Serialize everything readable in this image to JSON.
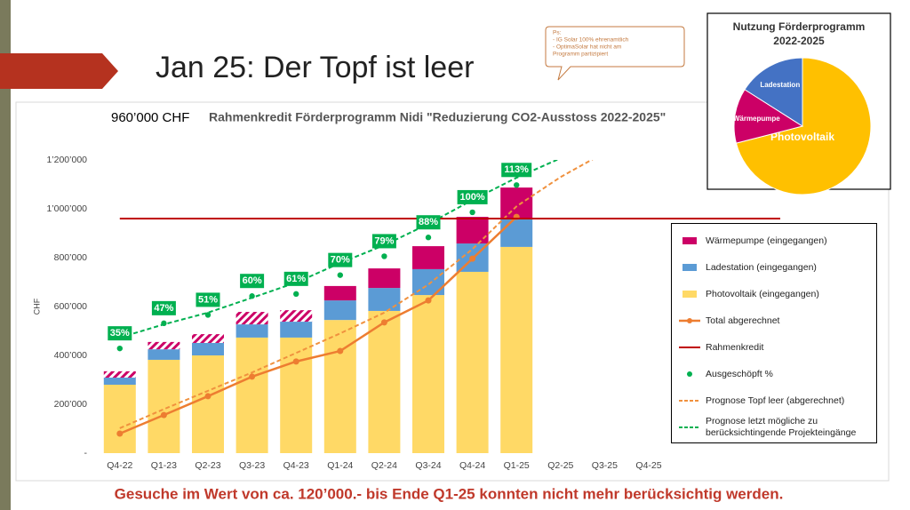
{
  "slide_title": "Jan 25: Der Topf ist leer",
  "note": [
    "Ps:",
    "- IG Solar 100% ehrenamtlich",
    "- OptimaSolar hat nicht am",
    "  Programm partizipiert"
  ],
  "footer": "Gesuche im Wert von ca. 120’000.- bis Ende Q1-25 konnten nicht mehr berücksichtig werden.",
  "chart_data": [
    {
      "type": "bar",
      "stacked": true,
      "grid": false,
      "title": "Rahmenkredit Förderprogramm Nidi \"Reduzierung CO2-Ausstoss 2022-2025\"",
      "subtitle": "960’000 CHF",
      "y_label": "CHF",
      "categories": [
        "Q4-22",
        "Q1-23",
        "Q2-23",
        "Q3-23",
        "Q4-23",
        "Q1-24",
        "Q2-24",
        "Q3-24",
        "Q4-24",
        "Q1-25",
        "Q2-25",
        "Q3-25",
        "Q4-25"
      ],
      "ylim": [
        0,
        1200000
      ],
      "yticks": [
        {
          "value": 0,
          "label": "-"
        },
        {
          "value": 200000,
          "label": "200’000"
        },
        {
          "value": 400000,
          "label": "400’000"
        },
        {
          "value": 600000,
          "label": "600’000"
        },
        {
          "value": 800000,
          "label": "800’000"
        },
        {
          "value": 1000000,
          "label": "1’000’000"
        },
        {
          "value": 1200000,
          "label": "1’200’000"
        }
      ],
      "y2lim": [
        -15,
        125
      ],
      "series": [
        {
          "name": "Wärmepumpe (eingegangen)",
          "kind": "bar",
          "color": "#cc0066",
          "values": [
            26000,
            30000,
            36000,
            51000,
            47000,
            59000,
            80000,
            94000,
            109000,
            127000,
            null,
            null,
            null
          ],
          "hatched": [
            true,
            true,
            true,
            true,
            true,
            false,
            false,
            false,
            false,
            false,
            false,
            false,
            false
          ]
        },
        {
          "name": "Ladestation (eingegangen)",
          "kind": "bar",
          "color": "#5b9bd5",
          "values": [
            29000,
            43000,
            51000,
            54000,
            65000,
            80000,
            94000,
            106000,
            116000,
            116000,
            null,
            null,
            null
          ]
        },
        {
          "name": "Photovoltaik (eingegangen)",
          "kind": "bar",
          "color": "#ffd966",
          "values": [
            280000,
            382000,
            400000,
            473000,
            473000,
            545000,
            582000,
            647000,
            742000,
            844000,
            null,
            null,
            null
          ]
        },
        {
          "name": "Total abgerechnet",
          "kind": "line",
          "color": "#ed7d31",
          "values": [
            80000,
            156000,
            233000,
            313000,
            375000,
            418000,
            535000,
            625000,
            796000,
            967000,
            null,
            null,
            null
          ]
        },
        {
          "name": "Rahmenkredit",
          "kind": "hline",
          "color": "#c00000",
          "value": 960000
        },
        {
          "name": "Ausgeschöpft %",
          "kind": "dots",
          "axis": "y2",
          "color": "#00b050",
          "values": [
            35,
            47,
            51,
            60,
            61,
            70,
            79,
            88,
            100,
            113,
            null,
            null,
            null
          ],
          "value_labels": [
            "35%",
            "47%",
            "51%",
            "60%",
            "61%",
            "70%",
            "79%",
            "88%",
            "100%",
            "113%",
            null,
            null,
            null
          ]
        },
        {
          "name": "Prognose Topf leer (abgerechnet)",
          "kind": "dashed",
          "color": "#f0913e",
          "values": [
            102000,
            180000,
            255000,
            330000,
            410000,
            490000,
            575000,
            690000,
            835000,
            1010000,
            1130000,
            1230000,
            null
          ]
        },
        {
          "name": "Prognose letzt mögliche zu berücksichtingende Projekteingänge",
          "kind": "dashed",
          "color": "#00b050",
          "values": [
            473000,
            527000,
            575000,
            636000,
            698000,
            778000,
            851000,
            938000,
            1036000,
            1127000,
            1207000,
            null,
            null
          ]
        }
      ]
    },
    {
      "type": "pie",
      "title": [
        "Nutzung Förderprogramm",
        "2022-2025"
      ],
      "categories": [
        "Photovoltaik",
        "Wärmepumpe",
        "Ladestation"
      ],
      "values": [
        71,
        13,
        16
      ],
      "colors": [
        "#ffc000",
        "#cc0066",
        "#4472c4"
      ]
    }
  ]
}
